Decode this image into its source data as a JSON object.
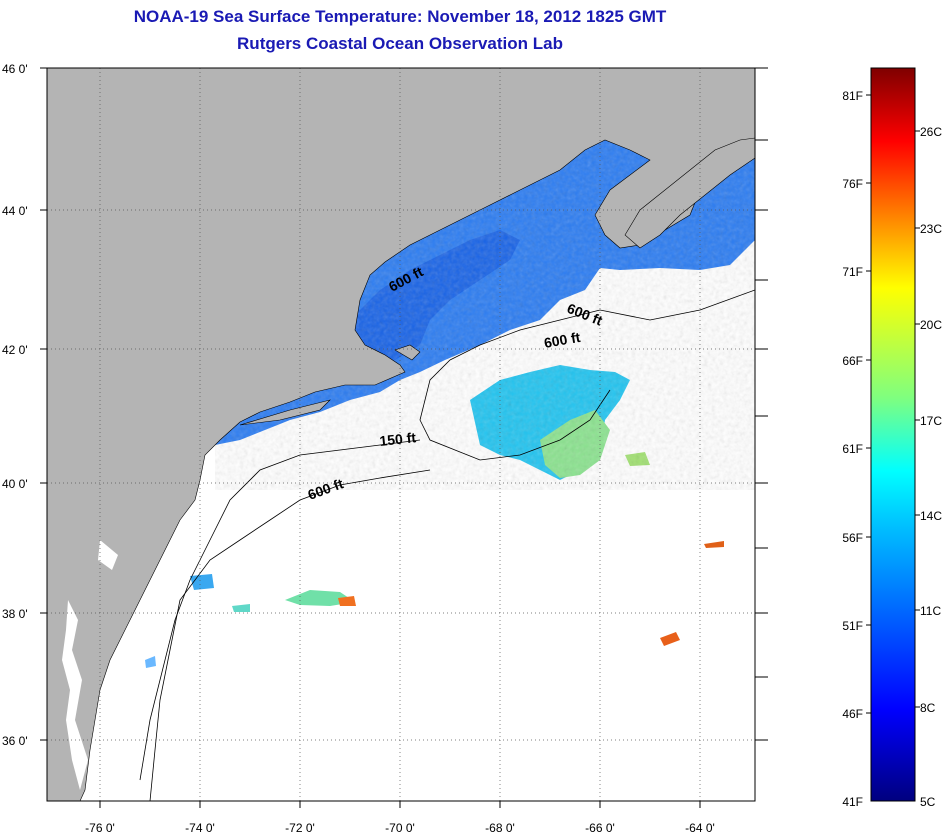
{
  "title": "NOAA-19 Sea Surface Temperature:  November 18, 2012 1825 GMT",
  "subtitle": "Rutgers Coastal Ocean Observation Lab",
  "map": {
    "lon_range": [
      -77,
      -63
    ],
    "lat_range": [
      35,
      46
    ],
    "lon_ticks": [
      "-76 0'",
      "-74 0'",
      "-72 0'",
      "-70 0'",
      "-68 0'",
      "-66 0'",
      "-64 0'"
    ],
    "lat_ticks": [
      "46 0'",
      "44 0'",
      "42 0'",
      "40 0'",
      "38 0'",
      "36 0'"
    ],
    "grid": "dotted",
    "land_color": "#b4b4b4",
    "no_data_color": "#ffffff",
    "contour_labels": [
      "600 ft",
      "600 ft",
      "600 ft",
      "150 ft",
      "600 ft"
    ]
  },
  "colorbar": {
    "fahrenheit_labels": [
      "81F",
      "76F",
      "71F",
      "66F",
      "61F",
      "56F",
      "51F",
      "46F",
      "41F"
    ],
    "celsius_labels": [
      "26C",
      "23C",
      "20C",
      "17C",
      "14C",
      "11C",
      "8C",
      "5C"
    ],
    "colormap": "jet",
    "colors": [
      "#00007f",
      "#0000ff",
      "#007fff",
      "#00ffff",
      "#7fff7f",
      "#ffff00",
      "#ff7f00",
      "#ff0000",
      "#7f0000"
    ]
  }
}
